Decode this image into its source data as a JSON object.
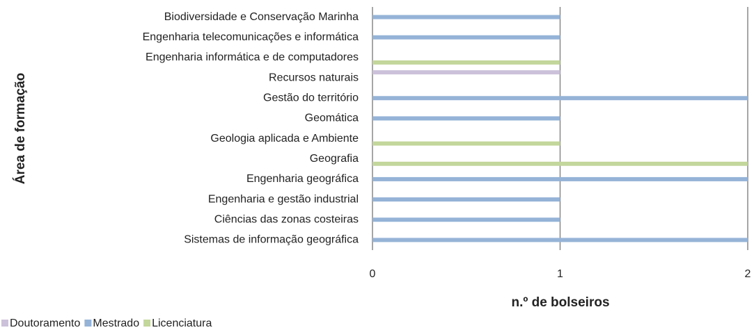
{
  "chart_data": {
    "type": "bar",
    "orientation": "horizontal",
    "x_label": "n.º de bolseiros",
    "y_label": "Área de formação",
    "categories": [
      "Biodiversidade e Conservação Marinha",
      "Engenharia telecomunicações e informática",
      "Engenharia informática e de computadores",
      "Recursos naturais",
      "Gestão do território",
      "Geomática",
      "Geologia aplicada e Ambiente",
      "Geografia",
      "Engenharia geográfica",
      "Engenharia e gestão industrial",
      "Ciências das zonas costeiras",
      "Sistemas de informação geográfica"
    ],
    "series": [
      {
        "name": "Doutoramento",
        "color": "#ccc1da",
        "values": [
          null,
          null,
          null,
          1,
          null,
          null,
          null,
          null,
          null,
          null,
          null,
          null
        ]
      },
      {
        "name": "Mestrado",
        "color": "#95b3d7",
        "values": [
          1,
          1,
          null,
          null,
          2,
          1,
          null,
          null,
          2,
          1,
          1,
          2
        ]
      },
      {
        "name": "Licenciatura",
        "color": "#c3d69b",
        "values": [
          null,
          null,
          1,
          null,
          null,
          null,
          1,
          2,
          null,
          null,
          null,
          null
        ]
      }
    ],
    "xlim": [
      0,
      2
    ],
    "xticks": [
      0,
      1,
      2
    ],
    "grid": true,
    "legend": "bottom-left"
  }
}
